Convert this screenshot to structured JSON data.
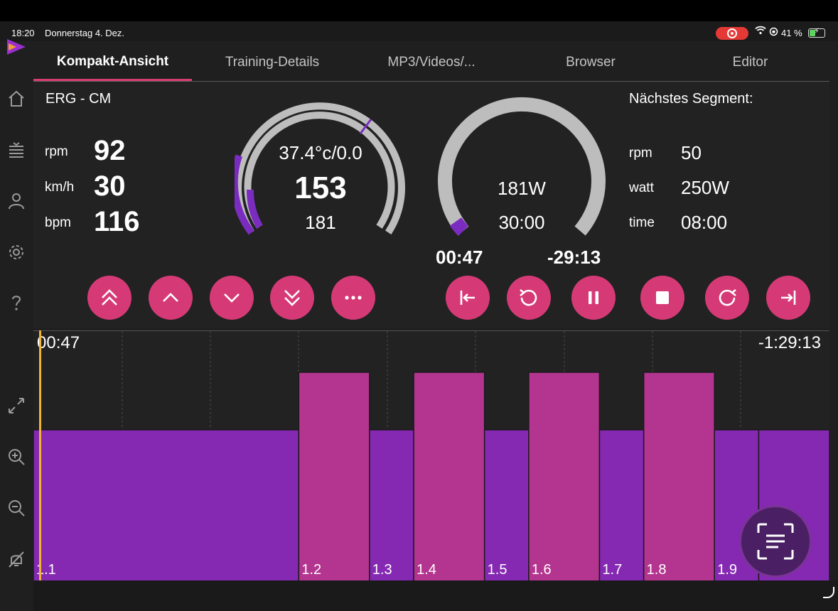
{
  "status_bar": {
    "time": "18:20",
    "date": "Donnerstag 4. Dez.",
    "battery": "41 %",
    "battery_level": 0.41
  },
  "tabs": [
    {
      "label": "Kompakt-Ansicht",
      "active": true
    },
    {
      "label": "Training-Details",
      "active": false
    },
    {
      "label": "MP3/Videos/...",
      "active": false
    },
    {
      "label": "Browser",
      "active": false
    },
    {
      "label": "Editor",
      "active": false
    }
  ],
  "sidebar": {
    "icons": [
      "home-icon",
      "list-icon",
      "user-icon",
      "gear-icon",
      "help-icon",
      "expand-icon",
      "zoom-in-icon",
      "zoom-out-icon",
      "mute-icon"
    ]
  },
  "current": {
    "mode": "ERG - CM",
    "metrics": [
      {
        "unit": "rpm",
        "value": "92"
      },
      {
        "unit": "km/h",
        "value": "30"
      },
      {
        "unit": "bpm",
        "value": "116"
      }
    ]
  },
  "gauge_left": {
    "line1": "37.4°c/0.0",
    "line2": "153",
    "line3": "181"
  },
  "gauge_right": {
    "line1": "181W",
    "line2": "30:00"
  },
  "timers": {
    "elapsed": "00:47",
    "remaining": "-29:13"
  },
  "next_segment": {
    "title": "Nächstes Segment:",
    "rows": [
      {
        "unit": "rpm",
        "value": "50"
      },
      {
        "unit": "watt",
        "value": "250W"
      },
      {
        "unit": "time",
        "value": "08:00"
      }
    ]
  },
  "controls": {
    "left": [
      "double-chevron-up-icon",
      "chevron-up-icon",
      "chevron-down-icon",
      "double-chevron-down-icon",
      "more-icon"
    ],
    "right": [
      "skip-back-icon",
      "restart-icon",
      "pause-icon",
      "stop-icon",
      "redo-icon",
      "skip-forward-icon"
    ]
  },
  "chart": {
    "time_left": "00:47",
    "time_right": "-1:29:13",
    "segments": [
      {
        "label": "1.1",
        "duration": 30,
        "level": "low"
      },
      {
        "label": "1.2",
        "duration": 8,
        "level": "high"
      },
      {
        "label": "1.3",
        "duration": 5,
        "level": "low"
      },
      {
        "label": "1.4",
        "duration": 8,
        "level": "high"
      },
      {
        "label": "1.5",
        "duration": 5,
        "level": "low"
      },
      {
        "label": "1.6",
        "duration": 8,
        "level": "high"
      },
      {
        "label": "1.7",
        "duration": 5,
        "level": "low"
      },
      {
        "label": "1.8",
        "duration": 8,
        "level": "high"
      },
      {
        "label": "1.9",
        "duration": 5,
        "level": "low"
      },
      {
        "label": "",
        "duration": 8,
        "level": "low"
      }
    ],
    "colors": {
      "low": "#8529b3",
      "high": "#b3358f"
    }
  },
  "colors": {
    "accent": "#d63a76",
    "gauge_progress": "#7b2cc0",
    "gauge_track": "#bdbdbd"
  }
}
